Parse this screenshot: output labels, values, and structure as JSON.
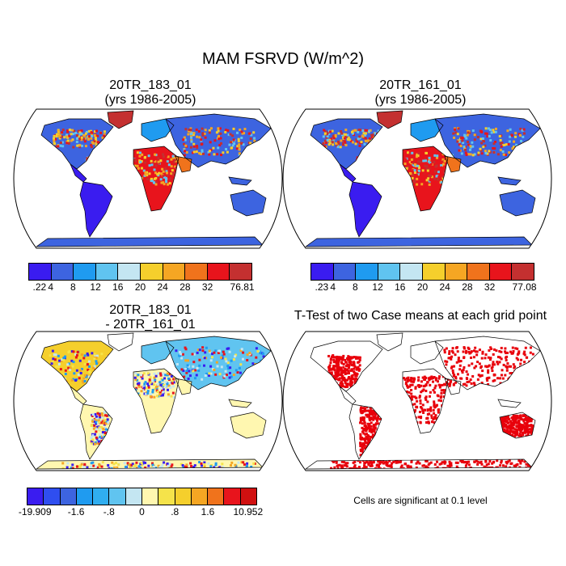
{
  "title": "MAM FSRVD (W/m^2)",
  "panels": [
    {
      "title_line1": "20TR_183_01",
      "title_line2": "(yrs 1986-2005)"
    },
    {
      "title_line1": "20TR_161_01",
      "title_line2": "(yrs 1986-2005)"
    },
    {
      "title_line1": "20TR_183_01",
      "title_line2": "- 20TR_161_01"
    },
    {
      "title_line1": "T-Test of two Case means at each grid point",
      "title_line2": ""
    }
  ],
  "colorbars": [
    {
      "labels": [
        ".22",
        "4",
        "8",
        "12",
        "16",
        "20",
        "24",
        "28",
        "32",
        "76.81"
      ],
      "colors": [
        "#3a1cf0",
        "#3d64e0",
        "#1f9bf0",
        "#60c4f0",
        "#c4e6f2",
        "#f5cf2c",
        "#f5a623",
        "#f0731c",
        "#e8141c",
        "#c43030"
      ]
    },
    {
      "labels": [
        ".23",
        "4",
        "8",
        "12",
        "16",
        "20",
        "24",
        "28",
        "32",
        "77.08"
      ],
      "colors": [
        "#3a1cf0",
        "#3d64e0",
        "#1f9bf0",
        "#60c4f0",
        "#c4e6f2",
        "#f5cf2c",
        "#f5a623",
        "#f0731c",
        "#e8141c",
        "#c43030"
      ]
    },
    {
      "labels": [
        "-19.909",
        "-1.6",
        "-.8",
        "0",
        ".8",
        "1.6",
        "10.952"
      ],
      "colors": [
        "#3a1cf0",
        "#2f4ef0",
        "#3d64e0",
        "#1f9bf0",
        "#30aef0",
        "#60c4f0",
        "#c4e6f2",
        "#fff7b0",
        "#f5e34a",
        "#f5cf2c",
        "#f5a623",
        "#f0731c",
        "#e8141c",
        "#d01010"
      ]
    }
  ],
  "significance_note": "Cells are significant at 0.1 level",
  "map_colors": {
    "ocean": "#ffffff",
    "coast": "#000000",
    "significant": "#e8000b"
  }
}
